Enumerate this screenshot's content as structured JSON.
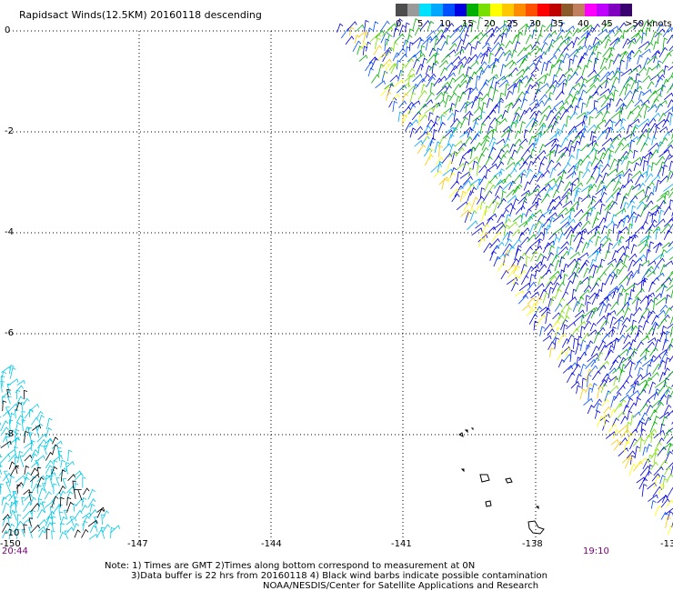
{
  "title": "Rapidsact Winds(12.5KM) 20160118 descending",
  "legend": {
    "labels": [
      "0",
      "5",
      "10",
      "15",
      "20",
      "25",
      "30",
      "35",
      "40",
      "45",
      ">50 knots"
    ],
    "colors": [
      "#4d4d4d",
      "#9a9a9a",
      "#00e0ff",
      "#00a8ff",
      "#0050ff",
      "#0000e0",
      "#00b000",
      "#78e000",
      "#ffff00",
      "#ffc800",
      "#ff8c00",
      "#ff5000",
      "#ff0000",
      "#c00000",
      "#8b5a2b",
      "#c08060",
      "#ff00ff",
      "#c000ff",
      "#8000c0",
      "#3a0070"
    ]
  },
  "axes": {
    "y_labels": [
      "0",
      "-2",
      "-4",
      "-6",
      "-8",
      "-10"
    ],
    "x_labels": [
      "-150",
      "-147",
      "-144",
      "-141",
      "-138",
      "-13"
    ]
  },
  "times": {
    "left": "20:44",
    "right": "19:10"
  },
  "notes": {
    "line1": "Note: 1) Times are GMT 2)Times along bottom correspond to measurement at 0N",
    "line2": "3)Data buffer is 22 hrs from 20160118 4) Black wind barbs indicate possible contamination",
    "line3": "NOAA/NESDIS/Center for Satellite Applications and Research"
  }
}
